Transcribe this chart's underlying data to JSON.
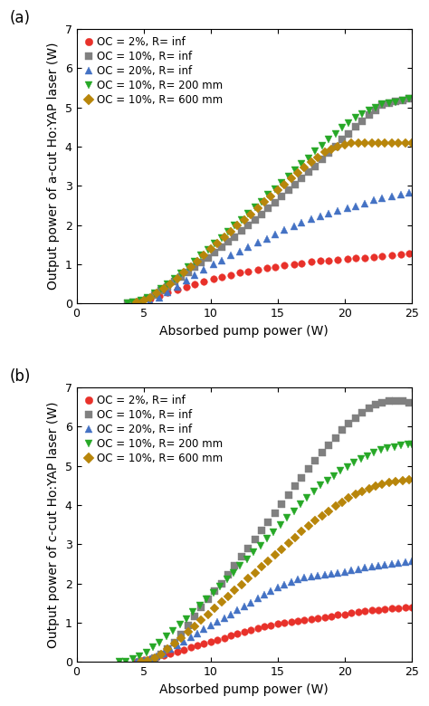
{
  "panel_a": {
    "ylabel": "Output power of a-cut Ho:YAP laser (W)",
    "xlabel": "Absorbed pump power (W)",
    "xlim": [
      0,
      25
    ],
    "ylim": [
      0,
      7
    ],
    "xticks": [
      0,
      5,
      10,
      15,
      20,
      25
    ],
    "yticks": [
      0,
      1,
      2,
      3,
      4,
      5,
      6,
      7
    ],
    "series": [
      {
        "label": "OC = 2%, R= inf",
        "color": "#e8312a",
        "marker": "o",
        "x": [
          4.2,
          4.8,
          5.5,
          6.2,
          6.8,
          7.5,
          8.2,
          8.8,
          9.5,
          10.2,
          10.8,
          11.5,
          12.2,
          12.8,
          13.5,
          14.2,
          14.8,
          15.5,
          16.2,
          16.8,
          17.5,
          18.2,
          18.8,
          19.5,
          20.2,
          20.8,
          21.5,
          22.2,
          22.8,
          23.5,
          24.2,
          24.8
        ],
        "y": [
          0.02,
          0.06,
          0.12,
          0.2,
          0.28,
          0.36,
          0.43,
          0.5,
          0.57,
          0.63,
          0.68,
          0.73,
          0.78,
          0.82,
          0.87,
          0.9,
          0.93,
          0.97,
          1.0,
          1.03,
          1.06,
          1.09,
          1.1,
          1.12,
          1.13,
          1.15,
          1.17,
          1.19,
          1.21,
          1.23,
          1.25,
          1.28
        ]
      },
      {
        "label": "OC = 10%, R= inf",
        "color": "#808080",
        "marker": "s",
        "x": [
          3.8,
          4.2,
          4.8,
          5.3,
          5.8,
          6.3,
          6.8,
          7.3,
          7.8,
          8.3,
          8.8,
          9.3,
          9.8,
          10.3,
          10.8,
          11.3,
          11.8,
          12.3,
          12.8,
          13.3,
          13.8,
          14.3,
          14.8,
          15.3,
          15.8,
          16.3,
          16.8,
          17.3,
          17.8,
          18.3,
          18.8,
          19.3,
          19.8,
          20.3,
          20.8,
          21.3,
          21.8,
          22.3,
          22.8,
          23.3,
          23.8,
          24.3,
          24.8
        ],
        "y": [
          0.0,
          0.02,
          0.06,
          0.13,
          0.22,
          0.32,
          0.43,
          0.55,
          0.67,
          0.8,
          0.92,
          1.05,
          1.17,
          1.3,
          1.43,
          1.57,
          1.7,
          1.85,
          1.98,
          2.12,
          2.27,
          2.42,
          2.57,
          2.72,
          2.88,
          3.03,
          3.18,
          3.35,
          3.5,
          3.68,
          3.83,
          4.0,
          4.17,
          4.33,
          4.5,
          4.65,
          4.8,
          4.92,
          5.05,
          5.1,
          5.15,
          5.18,
          5.22
        ]
      },
      {
        "label": "OC = 20%, R= inf",
        "color": "#4472c4",
        "marker": "^",
        "x": [
          5.0,
          5.5,
          6.2,
          6.8,
          7.5,
          8.2,
          8.8,
          9.5,
          10.2,
          10.8,
          11.5,
          12.2,
          12.8,
          13.5,
          14.2,
          14.8,
          15.5,
          16.2,
          16.8,
          17.5,
          18.2,
          18.8,
          19.5,
          20.2,
          20.8,
          21.5,
          22.2,
          22.8,
          23.5,
          24.2,
          24.8
        ],
        "y": [
          0.0,
          0.05,
          0.15,
          0.28,
          0.43,
          0.58,
          0.72,
          0.87,
          1.0,
          1.1,
          1.22,
          1.33,
          1.43,
          1.55,
          1.65,
          1.75,
          1.87,
          1.97,
          2.05,
          2.15,
          2.22,
          2.28,
          2.35,
          2.42,
          2.48,
          2.55,
          2.63,
          2.68,
          2.73,
          2.78,
          2.83
        ]
      },
      {
        "label": "OC = 10%, R= 200 mm",
        "color": "#27a827",
        "marker": "v",
        "x": [
          3.8,
          4.2,
          4.8,
          5.3,
          5.8,
          6.3,
          6.8,
          7.3,
          7.8,
          8.3,
          8.8,
          9.3,
          9.8,
          10.3,
          10.8,
          11.3,
          11.8,
          12.3,
          12.8,
          13.3,
          13.8,
          14.3,
          14.8,
          15.3,
          15.8,
          16.3,
          16.8,
          17.3,
          17.8,
          18.3,
          18.8,
          19.3,
          19.8,
          20.3,
          20.8,
          21.3,
          21.8,
          22.3,
          22.8,
          23.3,
          23.8,
          24.3,
          24.8
        ],
        "y": [
          0.0,
          0.02,
          0.07,
          0.15,
          0.25,
          0.37,
          0.5,
          0.63,
          0.77,
          0.92,
          1.07,
          1.22,
          1.37,
          1.52,
          1.67,
          1.83,
          1.98,
          2.13,
          2.28,
          2.45,
          2.6,
          2.77,
          2.92,
          3.07,
          3.23,
          3.4,
          3.55,
          3.7,
          3.87,
          4.03,
          4.18,
          4.33,
          4.47,
          4.6,
          4.73,
          4.83,
          4.93,
          5.0,
          5.07,
          5.1,
          5.13,
          5.18,
          5.22
        ]
      },
      {
        "label": "OC = 10%, R= 600 mm",
        "color": "#b8860b",
        "marker": "D",
        "x": [
          4.5,
          5.0,
          5.5,
          6.0,
          6.5,
          7.0,
          7.5,
          8.0,
          8.5,
          9.0,
          9.5,
          10.0,
          10.5,
          11.0,
          11.5,
          12.0,
          12.5,
          13.0,
          13.5,
          14.0,
          14.5,
          15.0,
          15.5,
          16.0,
          16.5,
          17.0,
          17.5,
          18.0,
          18.5,
          19.0,
          19.5,
          20.0,
          20.5,
          21.0,
          21.5,
          22.0,
          22.5,
          23.0,
          23.5,
          24.0,
          24.5,
          25.0
        ],
        "y": [
          0.02,
          0.07,
          0.15,
          0.25,
          0.37,
          0.5,
          0.63,
          0.78,
          0.93,
          1.07,
          1.22,
          1.38,
          1.53,
          1.68,
          1.83,
          1.98,
          2.12,
          2.27,
          2.43,
          2.58,
          2.73,
          2.88,
          3.03,
          3.18,
          3.32,
          3.47,
          3.6,
          3.73,
          3.85,
          3.93,
          4.0,
          4.05,
          4.08,
          4.1,
          4.1,
          4.1,
          4.1,
          4.1,
          4.1,
          4.1,
          4.1,
          4.1
        ]
      }
    ]
  },
  "panel_b": {
    "ylabel": "Output power of c-cut Ho:YAP laser (W)",
    "xlabel": "Absorbed pump power (W)",
    "xlim": [
      0,
      25
    ],
    "ylim": [
      0,
      7
    ],
    "xticks": [
      0,
      5,
      10,
      15,
      20,
      25
    ],
    "yticks": [
      0,
      1,
      2,
      3,
      4,
      5,
      6,
      7
    ],
    "series": [
      {
        "label": "OC = 2%, R= inf",
        "color": "#e8312a",
        "marker": "o",
        "x": [
          4.5,
          5.0,
          5.5,
          6.0,
          6.5,
          7.0,
          7.5,
          8.0,
          8.5,
          9.0,
          9.5,
          10.0,
          10.5,
          11.0,
          11.5,
          12.0,
          12.5,
          13.0,
          13.5,
          14.0,
          14.5,
          15.0,
          15.5,
          16.0,
          16.5,
          17.0,
          17.5,
          18.0,
          18.5,
          19.0,
          19.5,
          20.0,
          20.5,
          21.0,
          21.5,
          22.0,
          22.5,
          23.0,
          23.5,
          24.0,
          24.5,
          25.0
        ],
        "y": [
          0.02,
          0.05,
          0.08,
          0.12,
          0.17,
          0.22,
          0.27,
          0.32,
          0.37,
          0.42,
          0.47,
          0.52,
          0.57,
          0.62,
          0.67,
          0.72,
          0.77,
          0.82,
          0.87,
          0.9,
          0.93,
          0.97,
          1.0,
          1.02,
          1.05,
          1.07,
          1.1,
          1.12,
          1.15,
          1.17,
          1.2,
          1.22,
          1.25,
          1.27,
          1.3,
          1.32,
          1.33,
          1.35,
          1.37,
          1.38,
          1.39,
          1.4
        ]
      },
      {
        "label": "OC = 10%, R= inf",
        "color": "#808080",
        "marker": "s",
        "x": [
          4.8,
          5.3,
          5.8,
          6.3,
          6.8,
          7.3,
          7.8,
          8.3,
          8.8,
          9.3,
          9.8,
          10.3,
          10.8,
          11.3,
          11.8,
          12.3,
          12.8,
          13.3,
          13.8,
          14.3,
          14.8,
          15.3,
          15.8,
          16.3,
          16.8,
          17.3,
          17.8,
          18.3,
          18.8,
          19.3,
          19.8,
          20.3,
          20.8,
          21.3,
          21.8,
          22.3,
          22.8,
          23.3,
          23.8,
          24.3,
          24.8
        ],
        "y": [
          0.0,
          0.03,
          0.1,
          0.2,
          0.33,
          0.5,
          0.7,
          0.93,
          1.17,
          1.4,
          1.6,
          1.8,
          2.0,
          2.22,
          2.45,
          2.68,
          2.9,
          3.12,
          3.35,
          3.57,
          3.8,
          4.02,
          4.25,
          4.48,
          4.7,
          4.92,
          5.13,
          5.33,
          5.53,
          5.72,
          5.92,
          6.07,
          6.22,
          6.35,
          6.47,
          6.57,
          6.62,
          6.65,
          6.65,
          6.65,
          6.62
        ]
      },
      {
        "label": "OC = 20%, R= inf",
        "color": "#4472c4",
        "marker": "^",
        "x": [
          4.5,
          5.0,
          5.5,
          6.0,
          6.5,
          7.0,
          7.5,
          8.0,
          8.5,
          9.0,
          9.5,
          10.0,
          10.5,
          11.0,
          11.5,
          12.0,
          12.5,
          13.0,
          13.5,
          14.0,
          14.5,
          15.0,
          15.5,
          16.0,
          16.5,
          17.0,
          17.5,
          18.0,
          18.5,
          19.0,
          19.5,
          20.0,
          20.5,
          21.0,
          21.5,
          22.0,
          22.5,
          23.0,
          23.5,
          24.0,
          24.5,
          25.0
        ],
        "y": [
          0.0,
          0.03,
          0.08,
          0.15,
          0.23,
          0.33,
          0.43,
          0.53,
          0.63,
          0.73,
          0.83,
          0.93,
          1.02,
          1.12,
          1.22,
          1.32,
          1.42,
          1.52,
          1.62,
          1.72,
          1.82,
          1.9,
          1.98,
          2.05,
          2.1,
          2.15,
          2.18,
          2.2,
          2.22,
          2.24,
          2.27,
          2.3,
          2.33,
          2.37,
          2.4,
          2.43,
          2.45,
          2.48,
          2.5,
          2.53,
          2.55,
          2.58
        ]
      },
      {
        "label": "OC = 10%, R= 200 mm",
        "color": "#27a827",
        "marker": "v",
        "x": [
          3.2,
          3.7,
          4.2,
          4.7,
          5.2,
          5.7,
          6.2,
          6.7,
          7.2,
          7.7,
          8.2,
          8.7,
          9.2,
          9.7,
          10.2,
          10.7,
          11.2,
          11.7,
          12.2,
          12.7,
          13.2,
          13.7,
          14.2,
          14.7,
          15.2,
          15.7,
          16.2,
          16.7,
          17.2,
          17.7,
          18.2,
          18.7,
          19.2,
          19.7,
          20.2,
          20.7,
          21.2,
          21.7,
          22.2,
          22.7,
          23.2,
          23.7,
          24.2,
          24.7,
          25.0
        ],
        "y": [
          0.0,
          0.02,
          0.07,
          0.15,
          0.25,
          0.37,
          0.5,
          0.65,
          0.8,
          0.95,
          1.1,
          1.27,
          1.43,
          1.6,
          1.77,
          1.93,
          2.1,
          2.27,
          2.45,
          2.62,
          2.8,
          2.97,
          3.15,
          3.32,
          3.5,
          3.68,
          3.85,
          4.02,
          4.18,
          4.35,
          4.5,
          4.63,
          4.75,
          4.87,
          4.98,
          5.08,
          5.17,
          5.25,
          5.33,
          5.4,
          5.45,
          5.48,
          5.52,
          5.55,
          5.55
        ]
      },
      {
        "label": "OC = 10%, R= 600 mm",
        "color": "#b8860b",
        "marker": "D",
        "x": [
          4.8,
          5.3,
          5.8,
          6.3,
          6.8,
          7.3,
          7.8,
          8.3,
          8.8,
          9.3,
          9.8,
          10.3,
          10.8,
          11.3,
          11.8,
          12.3,
          12.8,
          13.3,
          13.8,
          14.3,
          14.8,
          15.3,
          15.8,
          16.3,
          16.8,
          17.3,
          17.8,
          18.3,
          18.8,
          19.3,
          19.8,
          20.3,
          20.8,
          21.3,
          21.8,
          22.3,
          22.8,
          23.3,
          23.8,
          24.3,
          24.8
        ],
        "y": [
          0.0,
          0.03,
          0.1,
          0.2,
          0.33,
          0.47,
          0.62,
          0.77,
          0.92,
          1.07,
          1.22,
          1.38,
          1.53,
          1.68,
          1.83,
          1.98,
          2.13,
          2.28,
          2.43,
          2.58,
          2.73,
          2.88,
          3.03,
          3.18,
          3.33,
          3.47,
          3.6,
          3.73,
          3.85,
          3.97,
          4.08,
          4.18,
          4.27,
          4.35,
          4.42,
          4.48,
          4.53,
          4.57,
          4.6,
          4.63,
          4.65
        ]
      }
    ]
  },
  "label_fontsize": 10,
  "tick_fontsize": 9,
  "legend_fontsize": 8.5,
  "marker_size": 5.5,
  "bg_color": "#ffffff"
}
